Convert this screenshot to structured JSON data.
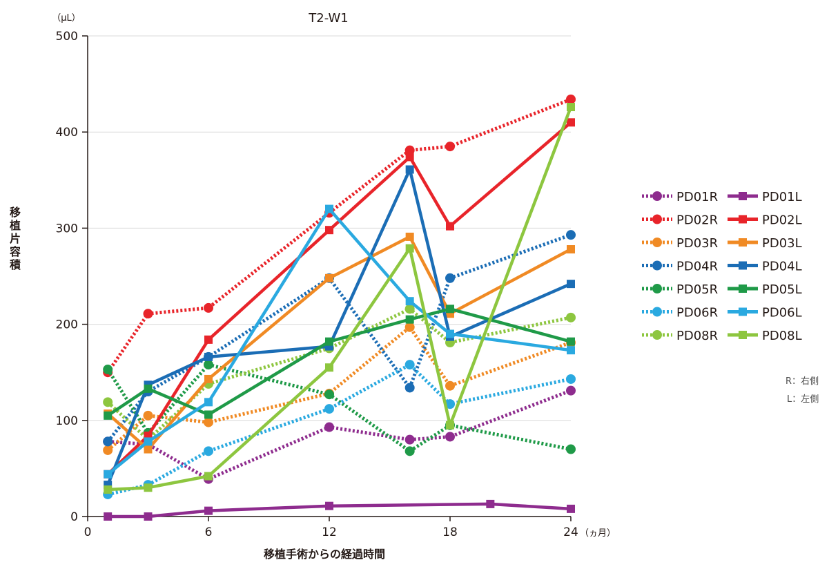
{
  "chart_data": {
    "type": "line",
    "title": "T2-W1",
    "xlabel": "移植手術からの経過時間",
    "ylabel": "移植片容積",
    "x_unit": "（ヵ月）",
    "y_unit": "（μL）",
    "xlim": [
      0,
      24
    ],
    "ylim": [
      0,
      500
    ],
    "x_ticks": [
      0,
      6,
      12,
      18,
      24
    ],
    "y_ticks": [
      0,
      100,
      200,
      300,
      400,
      500
    ],
    "grid": "horizontal",
    "legend_position": "right",
    "notes": [
      "R：右側",
      "L：左側"
    ],
    "series": [
      {
        "name": "PD01R",
        "color": "#8e2c8e",
        "style": "dotted",
        "marker": "circle",
        "points": [
          [
            1,
            78
          ],
          [
            3,
            75
          ],
          [
            6,
            39
          ],
          [
            12,
            93
          ],
          [
            16,
            80
          ],
          [
            18,
            83
          ],
          [
            24,
            131
          ]
        ]
      },
      {
        "name": "PD02R",
        "color": "#e8242a",
        "style": "dotted",
        "marker": "circle",
        "points": [
          [
            1,
            150
          ],
          [
            3,
            211
          ],
          [
            6,
            217
          ],
          [
            12,
            316
          ],
          [
            16,
            381
          ],
          [
            18,
            385
          ],
          [
            24,
            434
          ]
        ]
      },
      {
        "name": "PD03R",
        "color": "#f08a24",
        "style": "dotted",
        "marker": "circle",
        "points": [
          [
            1,
            69
          ],
          [
            3,
            105
          ],
          [
            6,
            98
          ],
          [
            12,
            128
          ],
          [
            16,
            197
          ],
          [
            18,
            136
          ],
          [
            24,
            181
          ]
        ]
      },
      {
        "name": "PD04R",
        "color": "#1b6db5",
        "style": "dotted",
        "marker": "circle",
        "points": [
          [
            1,
            78
          ],
          [
            3,
            130
          ],
          [
            6,
            166
          ],
          [
            12,
            248
          ],
          [
            16,
            134
          ],
          [
            18,
            248
          ],
          [
            24,
            293
          ]
        ]
      },
      {
        "name": "PD05R",
        "color": "#1f9a48",
        "style": "dotted",
        "marker": "circle",
        "points": [
          [
            1,
            153
          ],
          [
            3,
            87
          ],
          [
            6,
            158
          ],
          [
            12,
            127
          ],
          [
            16,
            68
          ],
          [
            18,
            95
          ],
          [
            24,
            70
          ]
        ]
      },
      {
        "name": "PD06R",
        "color": "#2aa9e0",
        "style": "dotted",
        "marker": "circle",
        "points": [
          [
            1,
            23
          ],
          [
            3,
            33
          ],
          [
            6,
            68
          ],
          [
            12,
            112
          ],
          [
            16,
            158
          ],
          [
            18,
            117
          ],
          [
            24,
            143
          ]
        ]
      },
      {
        "name": "PD08R",
        "color": "#8dc63f",
        "style": "dotted",
        "marker": "circle",
        "points": [
          [
            1,
            119
          ],
          [
            3,
            80
          ],
          [
            6,
            138
          ],
          [
            12,
            175
          ],
          [
            16,
            216
          ],
          [
            18,
            181
          ],
          [
            24,
            207
          ]
        ]
      },
      {
        "name": "PD01L",
        "color": "#8e2c8e",
        "style": "solid",
        "marker": "square",
        "points": [
          [
            1,
            0
          ],
          [
            3,
            0
          ],
          [
            6,
            6
          ],
          [
            12,
            11
          ],
          [
            20,
            13
          ],
          [
            24,
            8
          ]
        ]
      },
      {
        "name": "PD02L",
        "color": "#e8242a",
        "style": "solid",
        "marker": "square",
        "points": [
          [
            1,
            44
          ],
          [
            3,
            84
          ],
          [
            6,
            184
          ],
          [
            12,
            298
          ],
          [
            16,
            374
          ],
          [
            18,
            302
          ],
          [
            24,
            410
          ]
        ]
      },
      {
        "name": "PD03L",
        "color": "#f08a24",
        "style": "solid",
        "marker": "square",
        "points": [
          [
            1,
            107
          ],
          [
            3,
            70
          ],
          [
            6,
            143
          ],
          [
            12,
            248
          ],
          [
            16,
            291
          ],
          [
            18,
            211
          ],
          [
            24,
            278
          ]
        ]
      },
      {
        "name": "PD04L",
        "color": "#1b6db5",
        "style": "solid",
        "marker": "square",
        "points": [
          [
            1,
            33
          ],
          [
            3,
            137
          ],
          [
            6,
            166
          ],
          [
            12,
            177
          ],
          [
            16,
            361
          ],
          [
            18,
            187
          ],
          [
            24,
            242
          ]
        ]
      },
      {
        "name": "PD05L",
        "color": "#1f9a48",
        "style": "solid",
        "marker": "square",
        "points": [
          [
            1,
            105
          ],
          [
            3,
            133
          ],
          [
            6,
            106
          ],
          [
            12,
            182
          ],
          [
            16,
            205
          ],
          [
            18,
            216
          ],
          [
            24,
            182
          ]
        ]
      },
      {
        "name": "PD06L",
        "color": "#2aa9e0",
        "style": "solid",
        "marker": "square",
        "points": [
          [
            1,
            44
          ],
          [
            3,
            78
          ],
          [
            6,
            119
          ],
          [
            12,
            320
          ],
          [
            16,
            224
          ],
          [
            18,
            190
          ],
          [
            24,
            173
          ]
        ]
      },
      {
        "name": "PD08L",
        "color": "#8dc63f",
        "style": "solid",
        "marker": "square",
        "points": [
          [
            1,
            28
          ],
          [
            3,
            30
          ],
          [
            6,
            42
          ],
          [
            12,
            155
          ],
          [
            16,
            279
          ],
          [
            18,
            95
          ],
          [
            24,
            426
          ]
        ]
      }
    ]
  }
}
